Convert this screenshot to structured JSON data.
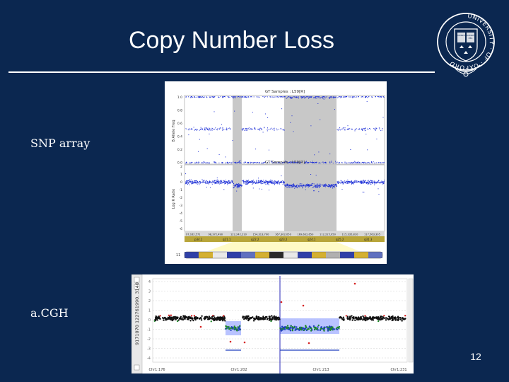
{
  "slide": {
    "title": "Copy Number Loss",
    "page_number": "12",
    "background_color": "#0b2750"
  },
  "logo": {
    "name": "university-of-oxford-crest",
    "text": "UNIVERSITY · OF · OXFORD",
    "book_text": [
      "DOMINUS",
      "ILLUMINATIO",
      "MEA"
    ]
  },
  "labels": {
    "snp": "SNP array",
    "acgh": "a.CGH"
  },
  "snp_figure": {
    "top_panel_title": "GT Samples : L59[R]",
    "bottom_panel_title": "GT Samples : L59[R]",
    "top_ylabel": "B Allele Freq",
    "bottom_ylabel": "Log R Ratio",
    "top_ticks": [
      "1.0",
      "0.8",
      "0.6",
      "0.4",
      "0.2",
      "0.0"
    ],
    "bottom_ticks": [
      "2",
      "1",
      "0",
      "-1",
      "-2",
      "-3",
      "-4",
      "-5",
      "-6"
    ],
    "position_labels": [
      "97,162,571",
      "98,372,490",
      "122,242,210",
      "154,313,790",
      "167,302,050",
      "169,632,650",
      "112,225,050",
      "115,335,810",
      "117,563,305"
    ],
    "band_labels": [
      "p34.1",
      "q21.1",
      "q22.2",
      "q23.2",
      "q24.1",
      "q25.2",
      "q31.3"
    ],
    "chromosome_label": "11",
    "point_color": "#1c2ed6",
    "shade_color": "#c8c8c8"
  },
  "acgh_figure": {
    "side_labels": "9171070 122761990, 3140",
    "y_ticks": [
      "4",
      "3",
      "2",
      "1",
      "0",
      "-1",
      "-2",
      "-3",
      "-4"
    ],
    "x_labels": [
      "Chr1:176",
      "Chr1:202",
      "Chr1:213",
      "Chr1:231"
    ],
    "gain_color": "#d62020",
    "loss_color": "#1f8a2a",
    "neutral_color": "#111111",
    "highlight_color": "#a8b4ff"
  }
}
